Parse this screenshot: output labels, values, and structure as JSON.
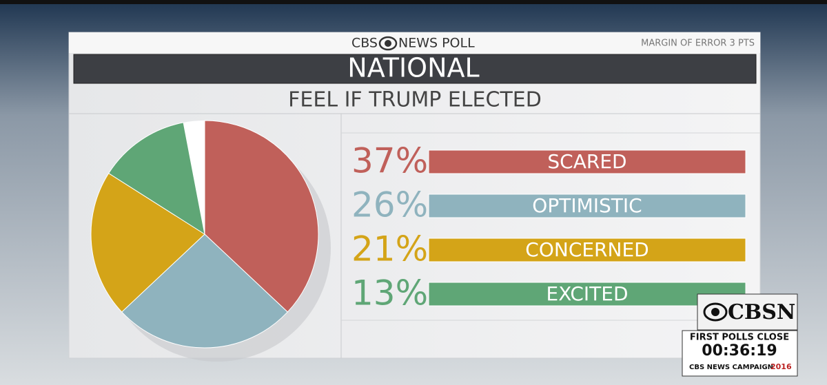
{
  "header": {
    "brand": "CBS",
    "brand_suffix": "NEWS POLL",
    "margin": "MARGIN OF ERROR 3 PTS",
    "region": "NATIONAL"
  },
  "chart_data": {
    "type": "pie",
    "title": "FEEL IF TRUMP ELECTED",
    "categories": [
      "SCARED",
      "OPTIMISTIC",
      "CONCERNED",
      "EXCITED"
    ],
    "values": [
      37,
      26,
      21,
      13
    ],
    "value_labels": [
      "37%",
      "26%",
      "21%",
      "13%"
    ],
    "colors": [
      "#c0605a",
      "#8fb3be",
      "#d4a418",
      "#5fa676"
    ]
  },
  "bug": {
    "network": "CBSN",
    "headline": "FIRST POLLS CLOSE",
    "countdown": "00:36:19",
    "campaign": "CBS NEWS CAMPAIGN",
    "year": "2016"
  }
}
